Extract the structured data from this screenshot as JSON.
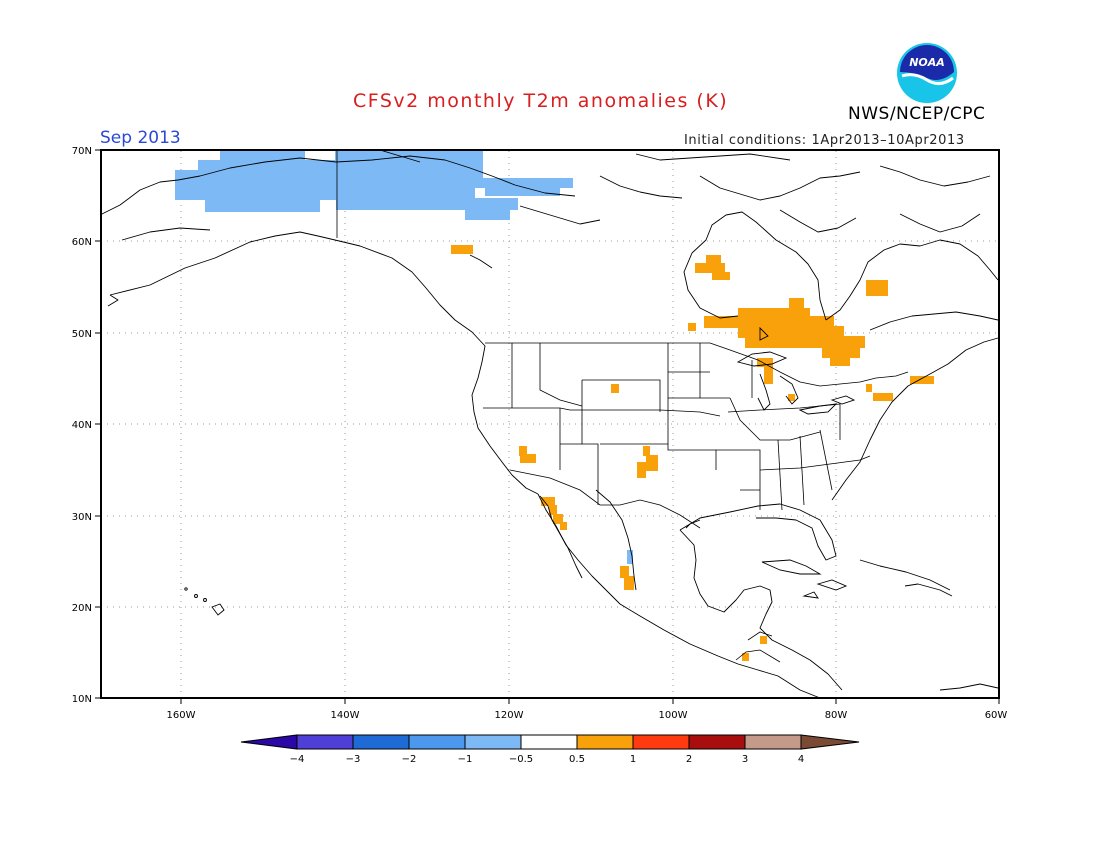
{
  "title": "CFSv2 monthly T2m anomalies (K)",
  "agency": "NWS/NCEP/CPC",
  "logo_text": "NOAA",
  "forecast_month": "Sep 2013",
  "initial_conditions": "Initial conditions: 1Apr2013–10Apr2013",
  "map": {
    "lon_range": [
      -172,
      -60
    ],
    "lat_range": [
      10,
      70
    ],
    "lat_labels": [
      "70N",
      "60N",
      "50N",
      "40N",
      "30N",
      "20N",
      "10N"
    ],
    "lon_labels": [
      "160W",
      "140W",
      "120W",
      "100W",
      "80W",
      "60W"
    ],
    "gridlines": "dotted",
    "anomaly_regions": [
      {
        "name": "northern Alaska / Yukon coast",
        "class": "-1 to -0.5"
      },
      {
        "name": "southern Mexico",
        "class": "-1 to -0.5"
      },
      {
        "name": "northern British Columbia",
        "class": "0.5 to 1"
      },
      {
        "name": "Hudson Bay / northern Ontario",
        "class": "0.5 to 1"
      },
      {
        "name": "Lake Superior / Michigan",
        "class": "0.5 to 1"
      },
      {
        "name": "southern Quebec",
        "class": "0.5 to 1"
      },
      {
        "name": "northern Quebec",
        "class": "0.5 to 1"
      },
      {
        "name": "New England",
        "class": "0.5 to 1"
      },
      {
        "name": "southern California / Nevada",
        "class": "0.5 to 1"
      },
      {
        "name": "Colorado",
        "class": "0.5 to 1"
      },
      {
        "name": "New Mexico",
        "class": "0.5 to 1"
      },
      {
        "name": "Baja California",
        "class": "0.5 to 1"
      },
      {
        "name": "western Mexico",
        "class": "0.5 to 1"
      },
      {
        "name": "Central America",
        "class": "0.5 to 1"
      }
    ]
  },
  "colorbar": {
    "labels": [
      "−4",
      "−3",
      "−2",
      "−1",
      "−0.5",
      "0.5",
      "1",
      "2",
      "3",
      "4"
    ],
    "colors": [
      "#2a07a6",
      "#4f3fd6",
      "#1f6bd6",
      "#4b98ee",
      "#7db9f5",
      "#ffffff",
      "#f9a10a",
      "#ff3a10",
      "#a80e0e",
      "#c49a8a",
      "#7a4a34"
    ]
  }
}
